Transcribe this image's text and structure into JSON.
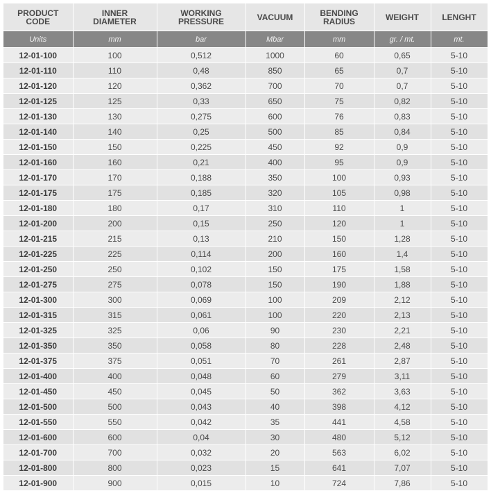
{
  "header": {
    "product_code": [
      "PRODUCT",
      "CODE"
    ],
    "inner_diameter": [
      "INNER",
      "DIAMETER"
    ],
    "working_pressure": [
      "WORKING",
      "PRESSURE"
    ],
    "vacuum": [
      "VACUUM"
    ],
    "bending_radius": [
      "BENDING",
      "RADIUS"
    ],
    "weight": [
      "WEIGHT"
    ],
    "length": [
      "LENGHT"
    ]
  },
  "units": [
    "Units",
    "mm",
    "bar",
    "Mbar",
    "mm",
    "gr. / mt.",
    "mt."
  ],
  "rows": [
    [
      "12-01-100",
      "100",
      "0,512",
      "1000",
      "60",
      "0,65",
      "5-10"
    ],
    [
      "12-01-110",
      "110",
      "0,48",
      "850",
      "65",
      "0,7",
      "5-10"
    ],
    [
      "12-01-120",
      "120",
      "0,362",
      "700",
      "70",
      "0,7",
      "5-10"
    ],
    [
      "12-01-125",
      "125",
      "0,33",
      "650",
      "75",
      "0,82",
      "5-10"
    ],
    [
      "12-01-130",
      "130",
      "0,275",
      "600",
      "76",
      "0,83",
      "5-10"
    ],
    [
      "12-01-140",
      "140",
      "0,25",
      "500",
      "85",
      "0,84",
      "5-10"
    ],
    [
      "12-01-150",
      "150",
      "0,225",
      "450",
      "92",
      "0,9",
      "5-10"
    ],
    [
      "12-01-160",
      "160",
      "0,21",
      "400",
      "95",
      "0,9",
      "5-10"
    ],
    [
      "12-01-170",
      "170",
      "0,188",
      "350",
      "100",
      "0,93",
      "5-10"
    ],
    [
      "12-01-175",
      "175",
      "0,185",
      "320",
      "105",
      "0,98",
      "5-10"
    ],
    [
      "12-01-180",
      "180",
      "0,17",
      "310",
      "110",
      "1",
      "5-10"
    ],
    [
      "12-01-200",
      "200",
      "0,15",
      "250",
      "120",
      "1",
      "5-10"
    ],
    [
      "12-01-215",
      "215",
      "0,13",
      "210",
      "150",
      "1,28",
      "5-10"
    ],
    [
      "12-01-225",
      "225",
      "0,114",
      "200",
      "160",
      "1,4",
      "5-10"
    ],
    [
      "12-01-250",
      "250",
      "0,102",
      "150",
      "175",
      "1,58",
      "5-10"
    ],
    [
      "12-01-275",
      "275",
      "0,078",
      "150",
      "190",
      "1,88",
      "5-10"
    ],
    [
      "12-01-300",
      "300",
      "0,069",
      "100",
      "209",
      "2,12",
      "5-10"
    ],
    [
      "12-01-315",
      "315",
      "0,061",
      "100",
      "220",
      "2,13",
      "5-10"
    ],
    [
      "12-01-325",
      "325",
      "0,06",
      "90",
      "230",
      "2,21",
      "5-10"
    ],
    [
      "12-01-350",
      "350",
      "0,058",
      "80",
      "228",
      "2,48",
      "5-10"
    ],
    [
      "12-01-375",
      "375",
      "0,051",
      "70",
      "261",
      "2,87",
      "5-10"
    ],
    [
      "12-01-400",
      "400",
      "0,048",
      "60",
      "279",
      "3,11",
      "5-10"
    ],
    [
      "12-01-450",
      "450",
      "0,045",
      "50",
      "362",
      "3,63",
      "5-10"
    ],
    [
      "12-01-500",
      "500",
      "0,043",
      "40",
      "398",
      "4,12",
      "5-10"
    ],
    [
      "12-01-550",
      "550",
      "0,042",
      "35",
      "441",
      "4,58",
      "5-10"
    ],
    [
      "12-01-600",
      "600",
      "0,04",
      "30",
      "480",
      "5,12",
      "5-10"
    ],
    [
      "12-01-700",
      "700",
      "0,032",
      "20",
      "563",
      "6,02",
      "5-10"
    ],
    [
      "12-01-800",
      "800",
      "0,023",
      "15",
      "641",
      "7,07",
      "5-10"
    ],
    [
      "12-01-900",
      "900",
      "0,015",
      "10",
      "724",
      "7,86",
      "5-10"
    ]
  ],
  "colors": {
    "header_bg": "#e6e6e6",
    "units_bg": "#878787",
    "row_light": "#ececec",
    "row_dark": "#e1e1e1",
    "text": "#4a4a4a"
  }
}
